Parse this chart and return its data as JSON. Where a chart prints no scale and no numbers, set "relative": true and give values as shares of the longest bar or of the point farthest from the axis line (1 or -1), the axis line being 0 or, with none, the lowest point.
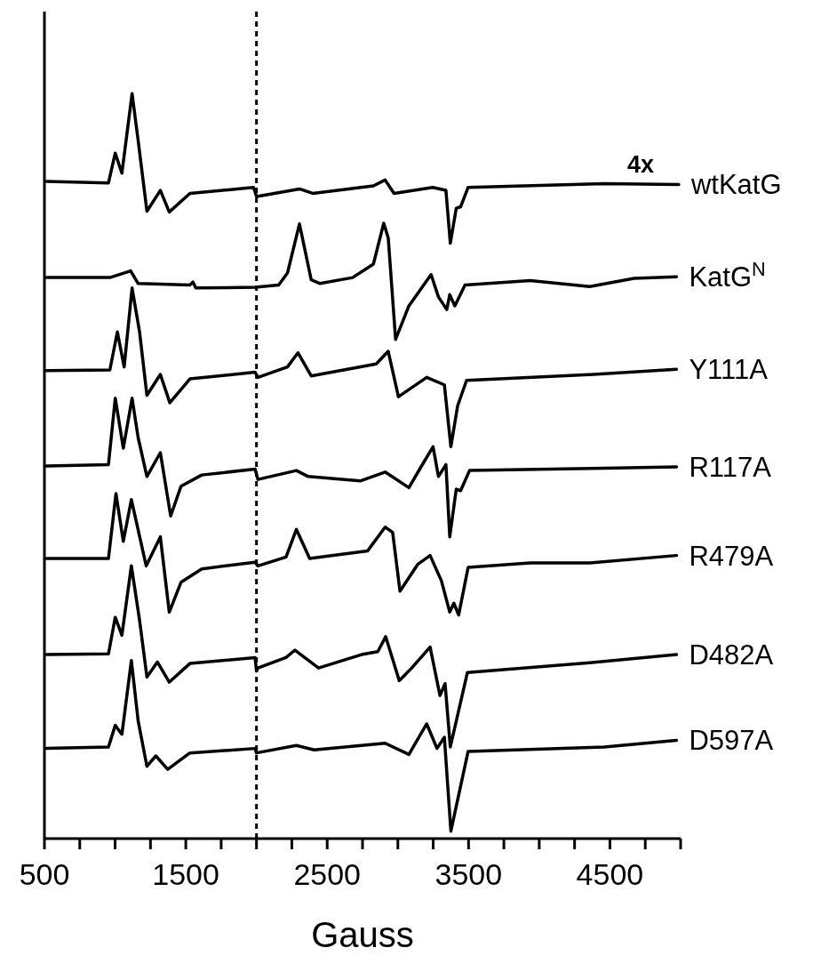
{
  "chart_data": {
    "type": "line",
    "relative": true,
    "xlabel": "Gauss",
    "annotations": [
      "4x"
    ],
    "line_style": "solid",
    "marker": "none",
    "xlim": [
      500,
      5000
    ],
    "xticks": [
      500,
      {
        "value": 750,
        "label": null
      },
      {
        "value": 1000,
        "label": null
      },
      {
        "value": 1250,
        "label": null
      },
      1500,
      {
        "value": 1750,
        "label": null
      },
      {
        "value": 2000,
        "label": null
      },
      {
        "value": 2250,
        "label": null
      },
      2500,
      {
        "value": 2750,
        "label": null
      },
      {
        "value": 3000,
        "label": null
      },
      {
        "value": 3250,
        "label": null
      },
      3500,
      {
        "value": 3750,
        "label": null
      },
      {
        "value": 4000,
        "label": null
      },
      {
        "value": 4250,
        "label": null
      },
      4500,
      {
        "value": 4750,
        "label": null
      },
      {
        "value": 5000,
        "label": null
      }
    ],
    "ref_lines": [
      {
        "axis": "x",
        "value": 2000,
        "line_style": "dashed",
        "color": "#000000"
      }
    ],
    "series": [
      {
        "name": "wtKatG",
        "color": "#000000",
        "x": [
          514,
          953,
          1001,
          1048,
          1120,
          1163,
          1225,
          1320,
          1383,
          1529,
          1979,
          2000,
          2010,
          2304,
          2398,
          2827,
          2910,
          2973,
          3246,
          3340,
          3371,
          3413,
          3444,
          3497,
          4460,
          4987
        ],
        "values": [
          0.882,
          0.88,
          0.92,
          0.893,
          1.0,
          0.937,
          0.842,
          0.87,
          0.841,
          0.866,
          0.874,
          0.862,
          0.862,
          0.872,
          0.866,
          0.876,
          0.884,
          0.866,
          0.874,
          0.87,
          0.799,
          0.846,
          0.848,
          0.874,
          0.879,
          0.878
        ]
      },
      {
        "name": "KatG$^{N}$",
        "color": "#000000",
        "x": [
          514,
          963,
          1110,
          1163,
          1529,
          1550,
          1571,
          1990,
          2157,
          2219,
          2304,
          2387,
          2450,
          2680,
          2827,
          2900,
          2932,
          2984,
          3078,
          3235,
          3287,
          3346,
          3367,
          3403,
          3475,
          3936,
          4357,
          4671,
          4971
        ],
        "values": [
          0.753,
          0.753,
          0.762,
          0.745,
          0.743,
          0.747,
          0.739,
          0.74,
          0.743,
          0.759,
          0.825,
          0.75,
          0.745,
          0.753,
          0.771,
          0.826,
          0.806,
          0.67,
          0.715,
          0.757,
          0.727,
          0.71,
          0.73,
          0.715,
          0.743,
          0.749,
          0.741,
          0.752,
          0.754
        ]
      },
      {
        "name": "Y111A",
        "color": "#000000",
        "x": [
          514,
          963,
          1016,
          1064,
          1120,
          1173,
          1225,
          1320,
          1387,
          1529,
          1990,
          2010,
          2219,
          2293,
          2387,
          2847,
          2932,
          3004,
          3204,
          3329,
          3375,
          3423,
          3486,
          4385,
          4971
        ],
        "values": [
          0.628,
          0.629,
          0.68,
          0.633,
          0.739,
          0.68,
          0.595,
          0.623,
          0.585,
          0.617,
          0.626,
          0.619,
          0.633,
          0.652,
          0.621,
          0.637,
          0.654,
          0.593,
          0.619,
          0.609,
          0.526,
          0.581,
          0.615,
          0.623,
          0.63
        ]
      },
      {
        "name": "R117A",
        "color": "#000000",
        "x": [
          514,
          953,
          1001,
          1058,
          1120,
          1163,
          1225,
          1320,
          1393,
          1466,
          1613,
          1990,
          2010,
          2282,
          2366,
          2733,
          2910,
          3078,
          3161,
          3249,
          3287,
          3340,
          3367,
          3413,
          3444,
          3507,
          4460,
          4971
        ],
        "values": [
          0.5,
          0.502,
          0.591,
          0.524,
          0.591,
          0.538,
          0.486,
          0.518,
          0.433,
          0.473,
          0.488,
          0.496,
          0.482,
          0.494,
          0.486,
          0.48,
          0.492,
          0.471,
          0.498,
          0.526,
          0.486,
          0.502,
          0.405,
          0.469,
          0.467,
          0.494,
          0.497,
          0.499
        ]
      },
      {
        "name": "R479A",
        "color": "#000000",
        "x": [
          514,
          953,
          1006,
          1058,
          1115,
          1220,
          1320,
          1383,
          1466,
          1613,
          1990,
          2010,
          2209,
          2282,
          2376,
          2785,
          2910,
          2963,
          3015,
          3140,
          3228,
          3308,
          3367,
          3396,
          3430,
          3497,
          3936,
          4357,
          4971
        ],
        "values": [
          0.376,
          0.376,
          0.463,
          0.399,
          0.455,
          0.366,
          0.405,
          0.304,
          0.344,
          0.362,
          0.371,
          0.366,
          0.378,
          0.415,
          0.376,
          0.386,
          0.418,
          0.411,
          0.332,
          0.368,
          0.38,
          0.346,
          0.304,
          0.316,
          0.3,
          0.364,
          0.37,
          0.37,
          0.38
        ]
      },
      {
        "name": "D482A",
        "color": "#000000",
        "x": [
          514,
          953,
          1001,
          1048,
          1115,
          1173,
          1225,
          1299,
          1383,
          1529,
          1990,
          2000,
          2010,
          2209,
          2272,
          2439,
          2743,
          2858,
          2914,
          3010,
          3098,
          3228,
          3298,
          3334,
          3371,
          3492,
          4357,
          4971
        ],
        "values": [
          0.247,
          0.248,
          0.297,
          0.273,
          0.366,
          0.293,
          0.217,
          0.237,
          0.21,
          0.235,
          0.243,
          0.225,
          0.229,
          0.243,
          0.253,
          0.229,
          0.247,
          0.251,
          0.271,
          0.212,
          0.229,
          0.257,
          0.192,
          0.208,
          0.123,
          0.223,
          0.236,
          0.247
        ]
      },
      {
        "name": "D597A",
        "color": "#000000",
        "x": [
          514,
          953,
          1001,
          1048,
          1115,
          1163,
          1225,
          1288,
          1372,
          1529,
          1990,
          2000,
          2282,
          2408,
          2910,
          3078,
          3204,
          3277,
          3329,
          3375,
          3497,
          4460,
          4971
        ],
        "values": [
          0.121,
          0.123,
          0.152,
          0.14,
          0.239,
          0.158,
          0.097,
          0.111,
          0.093,
          0.115,
          0.121,
          0.115,
          0.125,
          0.119,
          0.128,
          0.113,
          0.154,
          0.121,
          0.136,
          0.01,
          0.117,
          0.123,
          0.132
        ]
      }
    ]
  }
}
